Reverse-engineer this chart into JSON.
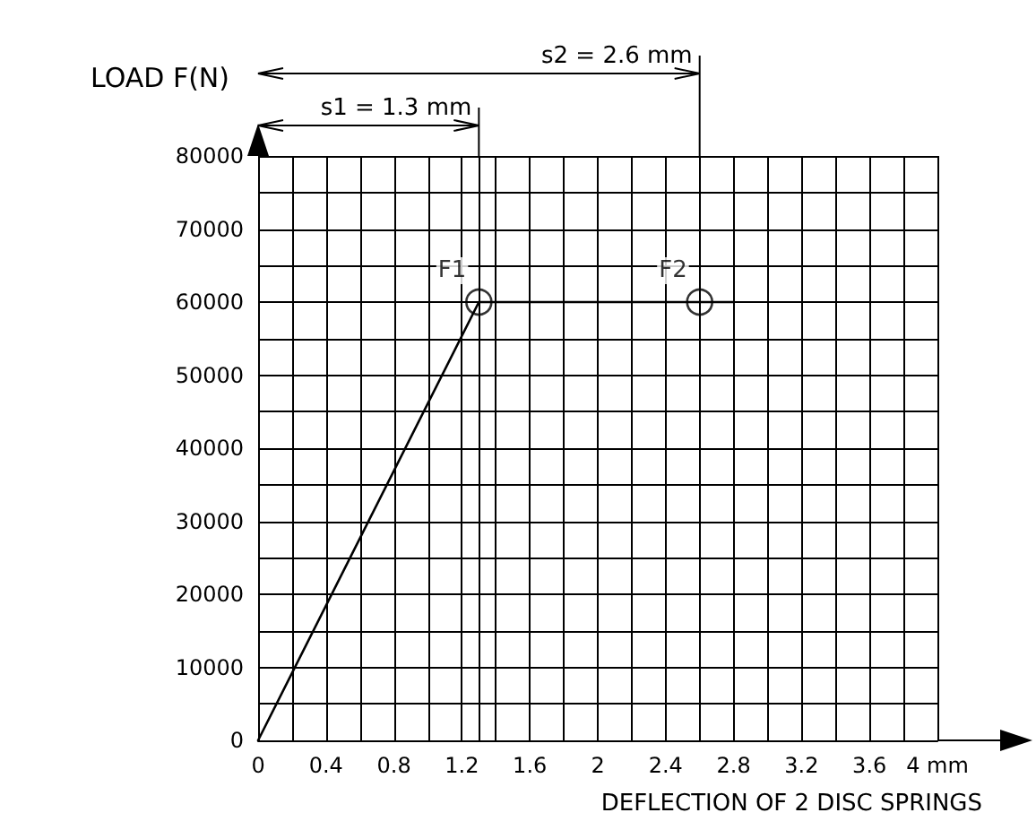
{
  "chart_data": {
    "type": "line",
    "xlabel": "DEFLECTION OF 2 DISC SPRINGS",
    "ylabel": "LOAD F(N)",
    "x": [
      0,
      1.3,
      2.8
    ],
    "series": [
      {
        "color": "#000000",
        "values": [
          0,
          60000,
          60000
        ],
        "marker": "none"
      },
      {
        "type": "scatter",
        "color": "#000000",
        "x": [
          1.3,
          2.6
        ],
        "values": [
          60000,
          60000
        ],
        "marker": "circle"
      }
    ],
    "xlim": [
      0,
      4
    ],
    "xticks": [
      0,
      0.4,
      0.8,
      1.2,
      1.6,
      2,
      2.4,
      2.8,
      3.2,
      3.6,
      {
        "value": 4,
        "label": "4 mm"
      }
    ],
    "ylim": [
      0,
      80000
    ],
    "yticks": [
      0,
      10000,
      20000,
      30000,
      40000,
      50000,
      60000,
      70000,
      80000
    ],
    "grid": true,
    "ref_lines": [
      {
        "axis": "x",
        "value": 1.3,
        "label": "s1 = 1.3 mm",
        "color": "#000000"
      },
      {
        "axis": "x",
        "value": 2.6,
        "label": "s2 = 2.6 mm",
        "color": "#000000"
      }
    ],
    "annotations": [
      {
        "text": "F1",
        "x": 1.3,
        "y": 60000
      },
      {
        "text": "F2",
        "x": 2.6,
        "y": 60000
      }
    ]
  }
}
